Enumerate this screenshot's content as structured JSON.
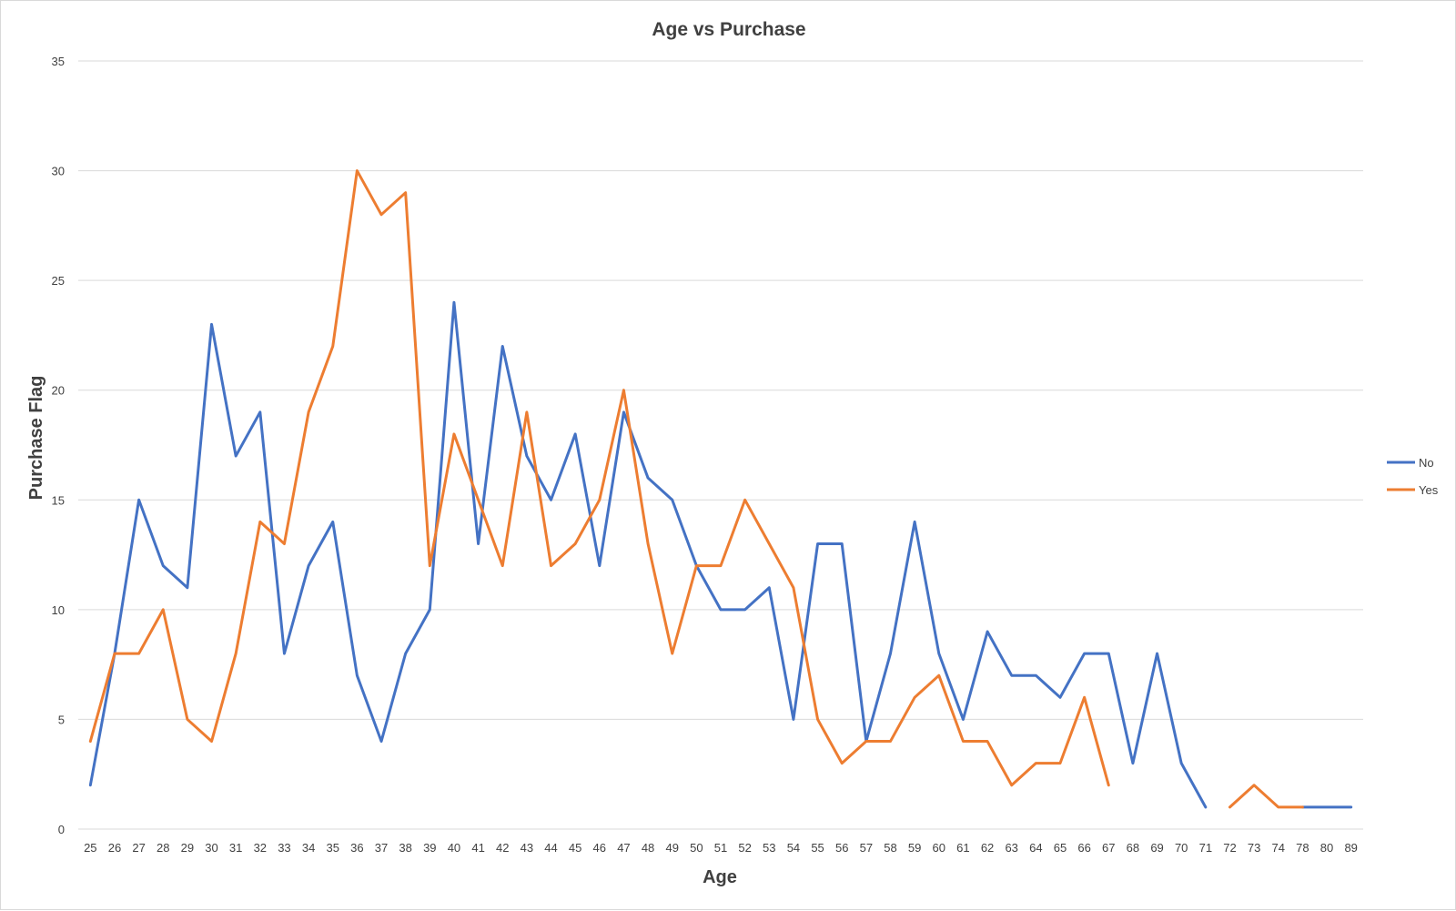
{
  "chart_data": {
    "type": "line",
    "title": "Age vs Purchase",
    "xlabel": "Age",
    "ylabel": "Purchase Flag",
    "ylim": [
      0,
      35
    ],
    "yticks": [
      0,
      5,
      10,
      15,
      20,
      25,
      30,
      35
    ],
    "grid": true,
    "legend_position": "right",
    "categories": [
      "25",
      "26",
      "27",
      "28",
      "29",
      "30",
      "31",
      "32",
      "33",
      "34",
      "35",
      "36",
      "37",
      "38",
      "39",
      "40",
      "41",
      "42",
      "43",
      "44",
      "45",
      "46",
      "47",
      "48",
      "49",
      "50",
      "51",
      "52",
      "53",
      "54",
      "55",
      "56",
      "57",
      "58",
      "59",
      "60",
      "61",
      "62",
      "63",
      "64",
      "65",
      "66",
      "67",
      "68",
      "69",
      "70",
      "71",
      "72",
      "73",
      "74",
      "78",
      "80",
      "89"
    ],
    "series": [
      {
        "name": "No",
        "color": "#4472c4",
        "values": [
          2,
          8,
          15,
          12,
          11,
          23,
          17,
          19,
          8,
          12,
          14,
          7,
          4,
          8,
          10,
          24,
          13,
          22,
          17,
          15,
          18,
          12,
          19,
          16,
          15,
          12,
          10,
          10,
          11,
          5,
          13,
          13,
          4,
          8,
          14,
          8,
          5,
          9,
          7,
          7,
          6,
          8,
          8,
          3,
          8,
          3,
          1,
          null,
          null,
          null,
          1,
          1,
          1
        ]
      },
      {
        "name": "Yes",
        "color": "#ed7d31",
        "values": [
          4,
          8,
          8,
          10,
          5,
          4,
          8,
          14,
          13,
          19,
          22,
          30,
          28,
          29,
          12,
          18,
          15,
          12,
          19,
          12,
          13,
          15,
          20,
          13,
          8,
          12,
          12,
          15,
          13,
          11,
          5,
          3,
          4,
          4,
          6,
          7,
          4,
          4,
          2,
          3,
          3,
          6,
          2,
          null,
          null,
          null,
          null,
          1,
          2,
          1,
          1,
          null,
          null
        ]
      }
    ]
  }
}
